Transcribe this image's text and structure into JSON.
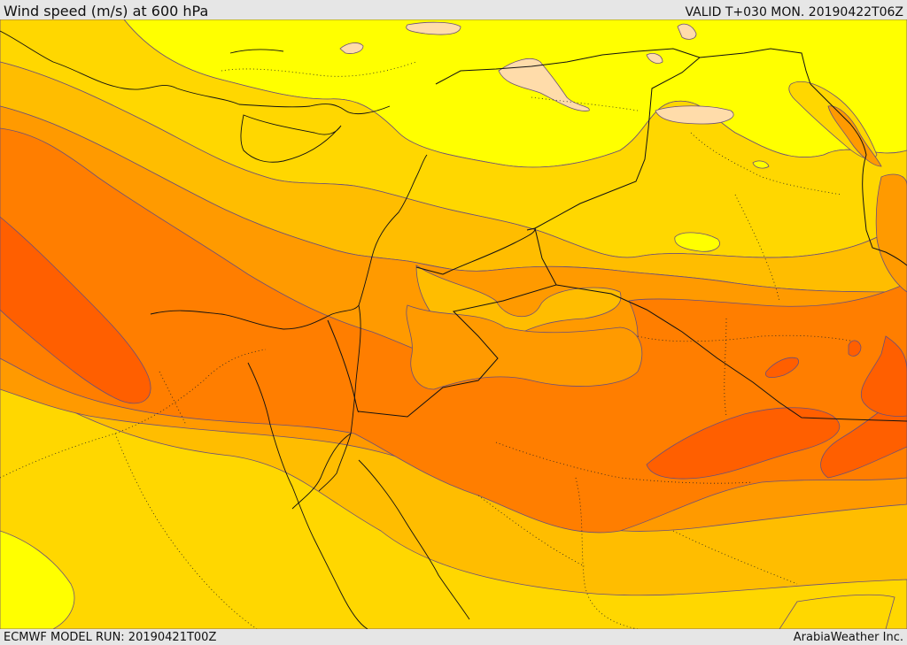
{
  "header": {
    "title": "Wind speed (m/s) at 600 hPa",
    "valid_time": "VALID T+030 MON. 20190422T06Z"
  },
  "footer": {
    "model_run": "ECMWF MODEL RUN: 20190421T00Z",
    "credit": "ArabiaWeather Inc."
  },
  "colors": {
    "band_0": "#ffdcaa",
    "band_1": "#ffff00",
    "band_2": "#ffd700",
    "band_3": "#ffbd00",
    "band_4": "#ff9a00",
    "band_5": "#ff7e00",
    "band_6": "#ff5f00",
    "contour": "#6b4f7a",
    "border": "#000000"
  }
}
